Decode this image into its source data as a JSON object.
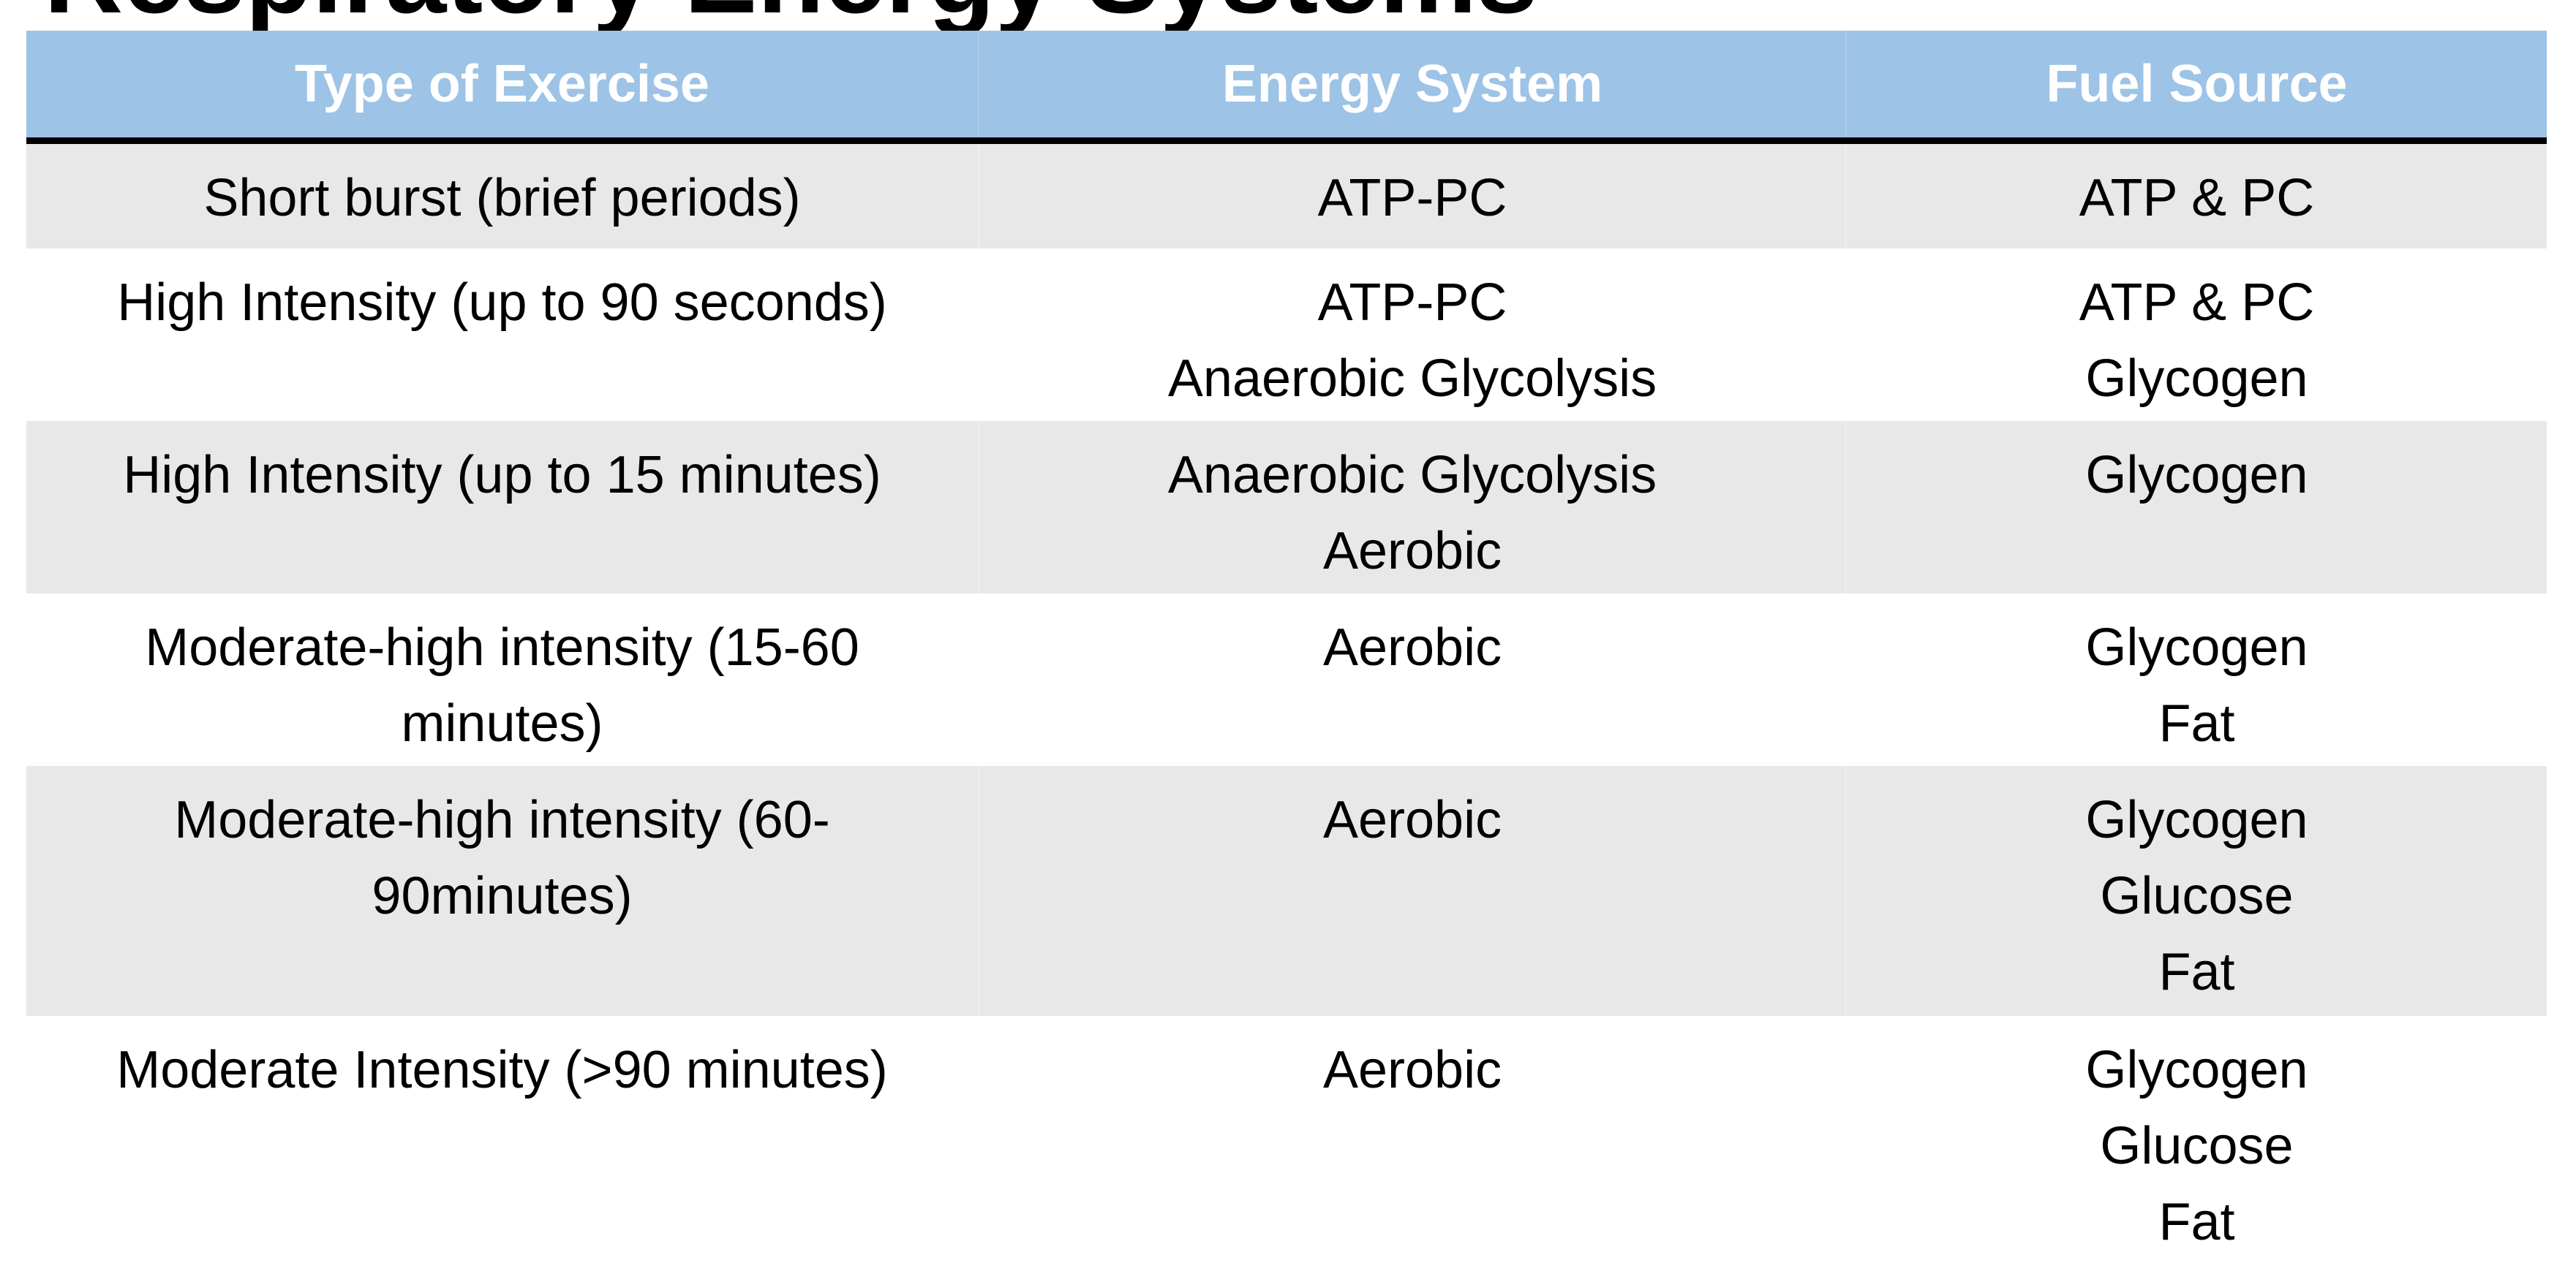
{
  "title": "Respiratory Energy Systems",
  "colors": {
    "header_bg": "#9dc3e6",
    "header_text": "#ffffff",
    "row_shaded": "#e8e8e8",
    "row_plain": "#ffffff",
    "rule": "#000000"
  },
  "table": {
    "headers": [
      "Type of Exercise",
      "Energy System",
      "Fuel Source"
    ],
    "rows": [
      {
        "type": [
          "Short burst (brief periods)"
        ],
        "system": [
          "ATP-PC"
        ],
        "fuel": [
          "ATP & PC"
        ]
      },
      {
        "type": [
          "High Intensity (up to 90 seconds)"
        ],
        "system": [
          "ATP-PC",
          "Anaerobic Glycolysis"
        ],
        "fuel": [
          "ATP & PC",
          "Glycogen"
        ]
      },
      {
        "type": [
          "High Intensity (up to 15 minutes)"
        ],
        "system": [
          "Anaerobic Glycolysis",
          "Aerobic"
        ],
        "fuel": [
          "Glycogen"
        ]
      },
      {
        "type": [
          "Moderate-high intensity (15-60",
          "minutes)"
        ],
        "system": [
          "Aerobic"
        ],
        "fuel": [
          "Glycogen",
          "Fat"
        ]
      },
      {
        "type": [
          "Moderate-high intensity (60-",
          "90minutes)"
        ],
        "system": [
          "Aerobic"
        ],
        "fuel": [
          "Glycogen",
          "Glucose",
          "Fat"
        ]
      },
      {
        "type": [
          "Moderate Intensity (>90 minutes)"
        ],
        "system": [
          "Aerobic"
        ],
        "fuel": [
          "Glycogen",
          "Glucose",
          "Fat"
        ]
      }
    ]
  }
}
